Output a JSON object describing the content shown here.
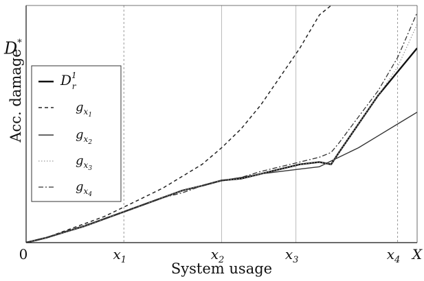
{
  "chart_data": {
    "type": "line",
    "title": "",
    "xlabel": "System usage",
    "ylabel": "Acc. damage",
    "xlim": [
      0,
      1.0
    ],
    "ylim": [
      0,
      1.0
    ],
    "grid": false,
    "legend_position": "left",
    "x_ticks": [
      {
        "value": 0,
        "label": "0",
        "sub": ""
      },
      {
        "value": 0.25,
        "label": "x",
        "sub": "1"
      },
      {
        "value": 0.5,
        "label": "x",
        "sub": "2"
      },
      {
        "value": 0.69,
        "label": "x",
        "sub": "3"
      },
      {
        "value": 0.95,
        "label": "x",
        "sub": "4"
      },
      {
        "value": 1.0,
        "label": "X",
        "sub": ""
      }
    ],
    "y_ticks": [
      {
        "value": 0.82,
        "label": "D",
        "sup": "*"
      }
    ],
    "vertical_markers": [
      0.25,
      0.5,
      0.69,
      0.95
    ],
    "legend": [
      {
        "label": "D",
        "sub": "r",
        "sup": "1"
      },
      {
        "label": "g",
        "sub": "x",
        "subsub": "1"
      },
      {
        "label": "g",
        "sub": "x",
        "subsub": "2"
      },
      {
        "label": "g",
        "sub": "x",
        "subsub": "3"
      },
      {
        "label": "g",
        "sub": "x",
        "subsub": "4"
      }
    ],
    "series": [
      {
        "style": "thick-solid",
        "color": "#111111",
        "x": [
          0,
          0.05,
          0.1,
          0.15,
          0.2,
          0.25,
          0.3,
          0.35,
          0.4,
          0.45,
          0.5,
          0.55,
          0.6,
          0.65,
          0.7,
          0.75,
          0.78,
          0.8,
          0.85,
          0.9,
          0.95,
          1.0
        ],
        "y": [
          0,
          0.02,
          0.045,
          0.07,
          0.1,
          0.13,
          0.16,
          0.19,
          0.22,
          0.24,
          0.262,
          0.27,
          0.29,
          0.31,
          0.33,
          0.34,
          0.33,
          0.38,
          0.5,
          0.62,
          0.72,
          0.82
        ]
      },
      {
        "style": "dashed",
        "color": "#222222",
        "x": [
          0,
          0.05,
          0.1,
          0.15,
          0.2,
          0.25,
          0.3,
          0.35,
          0.4,
          0.45,
          0.5,
          0.55,
          0.6,
          0.65,
          0.7,
          0.75,
          0.78
        ],
        "y": [
          0,
          0.02,
          0.05,
          0.08,
          0.11,
          0.15,
          0.19,
          0.23,
          0.28,
          0.33,
          0.4,
          0.48,
          0.58,
          0.7,
          0.82,
          0.96,
          1.0
        ]
      },
      {
        "style": "solid",
        "color": "#333333",
        "x": [
          0,
          0.05,
          0.1,
          0.15,
          0.2,
          0.25,
          0.3,
          0.35,
          0.4,
          0.45,
          0.5,
          0.55,
          0.6,
          0.65,
          0.7,
          0.75,
          0.8,
          0.85,
          0.9,
          0.95,
          1.0
        ],
        "y": [
          0,
          0.02,
          0.045,
          0.07,
          0.1,
          0.13,
          0.16,
          0.19,
          0.22,
          0.24,
          0.262,
          0.275,
          0.29,
          0.3,
          0.31,
          0.32,
          0.36,
          0.4,
          0.45,
          0.5,
          0.55
        ]
      },
      {
        "style": "dotted",
        "color": "#999999",
        "x": [
          0,
          0.05,
          0.1,
          0.15,
          0.2,
          0.25,
          0.3,
          0.35,
          0.4,
          0.45,
          0.5,
          0.55,
          0.6,
          0.65,
          0.7,
          0.75,
          0.78,
          0.8,
          0.85,
          0.9,
          0.95,
          1.0
        ],
        "y": [
          0,
          0.02,
          0.045,
          0.07,
          0.1,
          0.13,
          0.16,
          0.19,
          0.22,
          0.24,
          0.262,
          0.27,
          0.29,
          0.31,
          0.33,
          0.34,
          0.33,
          0.38,
          0.5,
          0.62,
          0.74,
          0.92
        ]
      },
      {
        "style": "dash-dot",
        "color": "#333333",
        "x": [
          0,
          0.05,
          0.1,
          0.15,
          0.2,
          0.25,
          0.3,
          0.35,
          0.4,
          0.45,
          0.5,
          0.55,
          0.6,
          0.65,
          0.7,
          0.75,
          0.78,
          0.8,
          0.85,
          0.9,
          0.95,
          1.0
        ],
        "y": [
          0,
          0.02,
          0.047,
          0.073,
          0.1,
          0.13,
          0.16,
          0.19,
          0.21,
          0.24,
          0.262,
          0.275,
          0.3,
          0.32,
          0.34,
          0.36,
          0.38,
          0.42,
          0.53,
          0.64,
          0.78,
          0.97
        ]
      }
    ]
  }
}
